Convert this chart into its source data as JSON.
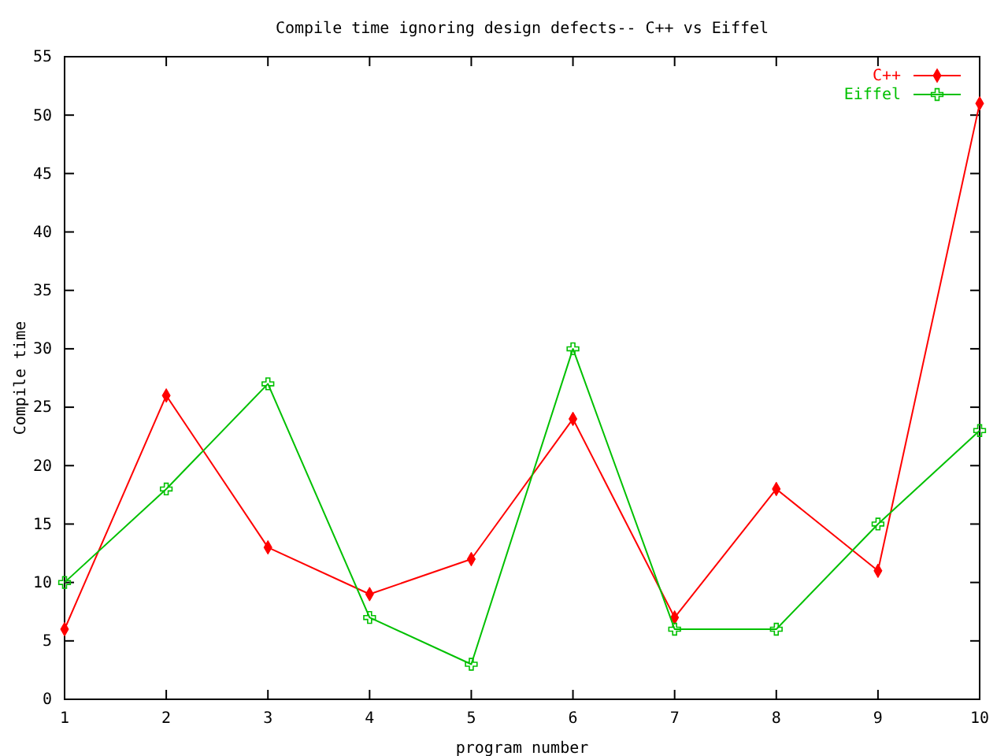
{
  "chart_data": {
    "type": "line",
    "title": "Compile time ignoring design defects-- C++ vs Eiffel",
    "xlabel": "program number",
    "ylabel": "Compile time",
    "x": [
      1,
      2,
      3,
      4,
      5,
      6,
      7,
      8,
      9,
      10
    ],
    "series": [
      {
        "name": "C++",
        "color": "#ff0000",
        "marker": "diamond",
        "values": [
          6,
          26,
          13,
          9,
          12,
          24,
          7,
          18,
          11,
          51
        ]
      },
      {
        "name": "Eiffel",
        "color": "#00c000",
        "marker": "cross",
        "values": [
          10,
          18,
          27,
          7,
          3,
          30,
          6,
          6,
          15,
          23
        ]
      }
    ],
    "xlim": [
      1,
      10
    ],
    "xticks": [
      1,
      2,
      3,
      4,
      5,
      6,
      7,
      8,
      9,
      10
    ],
    "ylim": [
      0,
      55
    ],
    "yticks": [
      0,
      5,
      10,
      15,
      20,
      25,
      30,
      35,
      40,
      45,
      50,
      55
    ],
    "grid": false,
    "legend": "top right"
  }
}
